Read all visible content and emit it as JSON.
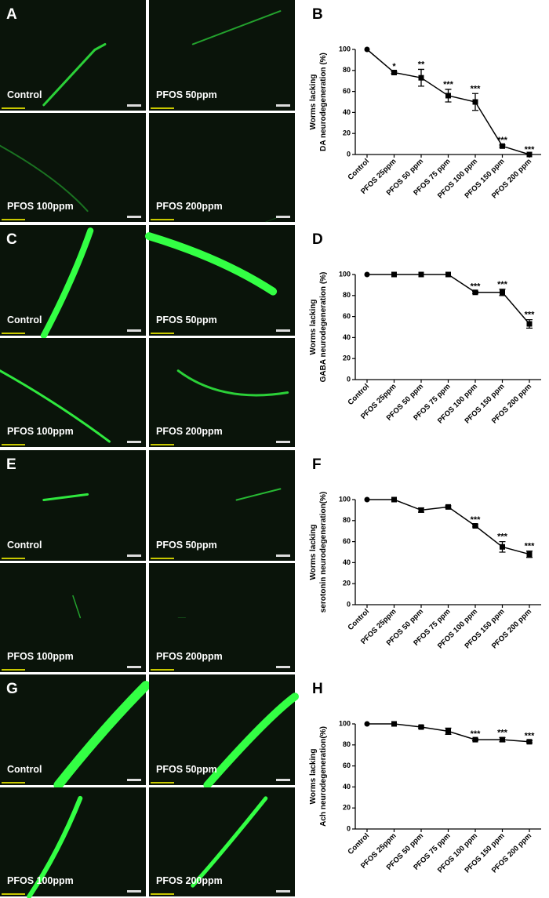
{
  "panels": [
    {
      "letter": "A",
      "images": [
        "Control",
        "PFOS 50ppm",
        "PFOS 100ppm",
        "PFOS 200ppm"
      ]
    },
    {
      "letter": "C",
      "images": [
        "Control",
        "PFOS 50ppm",
        "PFOS 100ppm",
        "PFOS 200ppm"
      ]
    },
    {
      "letter": "E",
      "images": [
        "Control",
        "PFOS 50ppm",
        "PFOS 100ppm",
        "PFOS 200ppm"
      ]
    },
    {
      "letter": "G",
      "images": [
        "Control",
        "PFOS 50ppm",
        "PFOS 100ppm",
        "PFOS 200ppm"
      ]
    }
  ],
  "chart_data": [
    {
      "type": "line",
      "panel_label": "B",
      "y_label": [
        "Worms lacking",
        "DA neurodegeneration (%)"
      ],
      "categories": [
        "Control",
        "PFOS 25ppm",
        "PFOS 50 ppm",
        "PFOS 75 ppm",
        "PFOS 100 ppm",
        "PFOS 150 ppm",
        "PFOS 200 ppm"
      ],
      "values": [
        100,
        78,
        73,
        56,
        50,
        8,
        0
      ],
      "errors": [
        0,
        1,
        8,
        6,
        8,
        1,
        0
      ],
      "annotations": [
        null,
        "*",
        "**",
        "***",
        "***",
        "***",
        "***"
      ],
      "color": "#000000",
      "ylim": [
        0,
        100
      ],
      "yticks": [
        0,
        20,
        40,
        60,
        80,
        100
      ]
    },
    {
      "type": "line",
      "panel_label": "D",
      "y_label": [
        "Worms lacking",
        "GABA neurodegeneration (%)"
      ],
      "categories": [
        "Control",
        "PFOS 25ppm",
        "PFOS 50 ppm",
        "PFOS 75 ppm",
        "PFOS 100 ppm",
        "PFOS 150 ppm",
        "PFOS 200 ppm"
      ],
      "values": [
        100,
        100,
        100,
        100,
        83,
        83,
        53
      ],
      "errors": [
        0,
        0,
        0,
        0,
        1,
        3,
        4
      ],
      "annotations": [
        null,
        null,
        null,
        null,
        "***",
        "***",
        "***"
      ],
      "color": "#000000",
      "ylim": [
        0,
        100
      ],
      "yticks": [
        0,
        20,
        40,
        60,
        80,
        100
      ]
    },
    {
      "type": "line",
      "panel_label": "F",
      "y_label": [
        "Worms lacking",
        "serotonin neurodegeneration(%)"
      ],
      "categories": [
        "Control",
        "PFOS 25ppm",
        "PFOS 50 ppm",
        "PFOS 75 ppm",
        "PFOS 100 ppm",
        "PFOS 150 ppm",
        "PFOS 200 ppm"
      ],
      "values": [
        100,
        100,
        90,
        93,
        75,
        55,
        48
      ],
      "errors": [
        0,
        0,
        2,
        1,
        1,
        5,
        3
      ],
      "annotations": [
        null,
        null,
        null,
        null,
        "***",
        "***",
        "***"
      ],
      "color": "#000000",
      "ylim": [
        0,
        100
      ],
      "yticks": [
        0,
        20,
        40,
        60,
        80,
        100
      ]
    },
    {
      "type": "line",
      "panel_label": "H",
      "y_label": [
        "Worms lacking",
        "Ach neurodegeneration(%)"
      ],
      "categories": [
        "Control",
        "PFOS 25ppm",
        "PFOS 50 ppm",
        "PFOS 75 ppm",
        "PFOS 100 ppm",
        "PFOS 150 ppm",
        "PFOS 200 ppm"
      ],
      "values": [
        100,
        100,
        97,
        93,
        85,
        85,
        83
      ],
      "errors": [
        0,
        0,
        1,
        3,
        1,
        2,
        1
      ],
      "annotations": [
        null,
        null,
        null,
        null,
        "***",
        "***",
        "***"
      ],
      "color": "#000000",
      "ylim": [
        0,
        100
      ],
      "yticks": [
        0,
        20,
        40,
        60,
        80,
        100
      ]
    }
  ]
}
